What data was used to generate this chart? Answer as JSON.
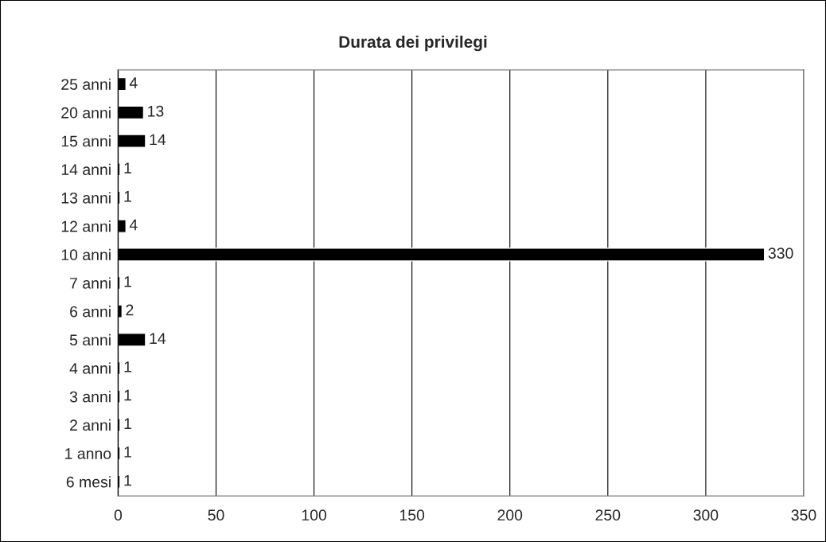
{
  "chart_data": {
    "type": "bar",
    "orientation": "horizontal",
    "title": "Durata dei privilegi",
    "categories": [
      "25 anni",
      "20 anni",
      "15 anni",
      "14 anni",
      "13 anni",
      "12 anni",
      "10 anni",
      "7 anni",
      "6 anni",
      "5 anni",
      "4 anni",
      "3 anni",
      "2 anni",
      "1 anno",
      "6 mesi"
    ],
    "values": [
      4,
      13,
      14,
      1,
      1,
      4,
      330,
      1,
      2,
      14,
      1,
      1,
      1,
      1,
      1
    ],
    "color": "#000000",
    "xlim": [
      0,
      350
    ],
    "xticks": [
      0,
      50,
      100,
      150,
      200,
      250,
      300,
      350
    ],
    "grid": "x",
    "data_labels": true
  }
}
